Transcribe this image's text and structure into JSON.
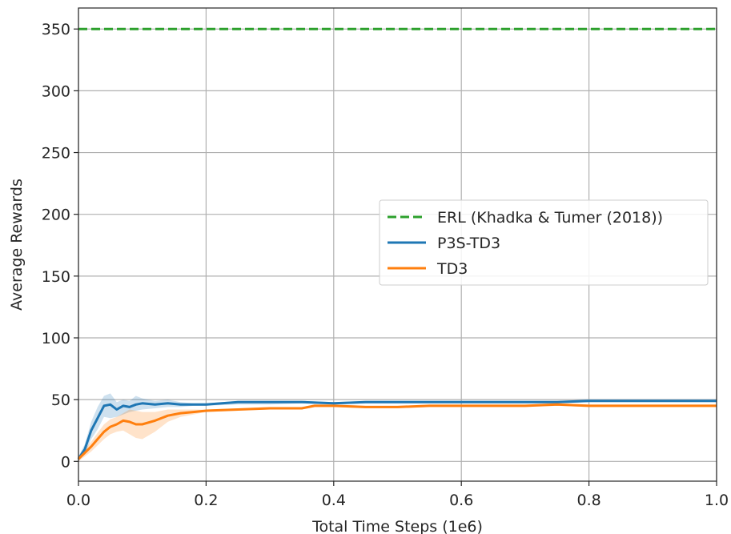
{
  "chart_data": {
    "type": "line",
    "title": "",
    "xlabel": "Total Time Steps (1e6)",
    "ylabel": "Average Rewards",
    "xlim": [
      0.0,
      1.0
    ],
    "ylim": [
      -16,
      367
    ],
    "xticks": [
      0.0,
      0.2,
      0.4,
      0.6,
      0.8,
      1.0
    ],
    "xtick_labels": [
      "0.0",
      "0.2",
      "0.4",
      "0.6",
      "0.8",
      "1.0"
    ],
    "yticks": [
      0,
      50,
      100,
      150,
      200,
      250,
      300,
      350
    ],
    "ytick_labels": [
      "0",
      "50",
      "100",
      "150",
      "200",
      "250",
      "300",
      "350"
    ],
    "grid": true,
    "legend_position": "center-right",
    "series": [
      {
        "name": "ERL (Khadka & Tumer (2018))",
        "color": "#2ca02c",
        "style": "dashed",
        "x": [
          0.0,
          1.0
        ],
        "y": [
          350,
          350
        ]
      },
      {
        "name": "P3S-TD3",
        "color": "#1f77b4",
        "style": "solid",
        "x": [
          0.0,
          0.01,
          0.02,
          0.03,
          0.04,
          0.05,
          0.06,
          0.07,
          0.08,
          0.09,
          0.1,
          0.12,
          0.14,
          0.16,
          0.18,
          0.2,
          0.25,
          0.3,
          0.35,
          0.4,
          0.45,
          0.5,
          0.55,
          0.6,
          0.65,
          0.7,
          0.75,
          0.8,
          0.85,
          0.9,
          0.95,
          1.0
        ],
        "y": [
          2,
          10,
          25,
          35,
          45,
          46,
          42,
          45,
          44,
          46,
          47,
          46,
          47,
          46,
          46,
          46,
          48,
          48,
          48,
          47,
          48,
          48,
          48,
          48,
          48,
          48,
          48,
          49,
          49,
          49,
          49,
          49
        ],
        "band_lower": [
          0,
          6,
          18,
          26,
          36,
          35,
          36,
          38,
          40,
          41,
          42,
          43,
          44,
          44,
          45,
          45,
          46,
          46,
          47,
          46,
          47,
          47,
          47,
          47,
          47,
          47,
          47,
          48,
          48,
          48,
          48,
          48
        ],
        "band_upper": [
          4,
          14,
          32,
          44,
          53,
          55,
          48,
          50,
          49,
          53,
          51,
          49,
          50,
          48,
          47,
          47,
          49,
          49,
          49,
          48,
          49,
          49,
          49,
          49,
          49,
          49,
          49,
          50,
          50,
          50,
          50,
          50
        ]
      },
      {
        "name": "TD3",
        "color": "#ff7f0e",
        "style": "solid",
        "x": [
          0.0,
          0.01,
          0.02,
          0.03,
          0.04,
          0.05,
          0.06,
          0.07,
          0.08,
          0.09,
          0.1,
          0.12,
          0.14,
          0.16,
          0.18,
          0.2,
          0.25,
          0.3,
          0.35,
          0.37,
          0.4,
          0.45,
          0.5,
          0.55,
          0.6,
          0.65,
          0.7,
          0.75,
          0.8,
          0.85,
          0.9,
          0.95,
          1.0
        ],
        "y": [
          2,
          7,
          12,
          18,
          24,
          28,
          30,
          33,
          32,
          30,
          30,
          33,
          37,
          39,
          40,
          41,
          42,
          43,
          43,
          45,
          45,
          44,
          44,
          45,
          45,
          45,
          45,
          46,
          45,
          45,
          45,
          45,
          45
        ],
        "band_lower": [
          0,
          4,
          8,
          13,
          18,
          22,
          24,
          25,
          22,
          19,
          18,
          24,
          32,
          36,
          38,
          40,
          41,
          42,
          42,
          44,
          44,
          43,
          43,
          44,
          44,
          44,
          44,
          45,
          44,
          44,
          44,
          44,
          44
        ],
        "band_upper": [
          4,
          10,
          16,
          23,
          30,
          34,
          36,
          39,
          42,
          41,
          40,
          40,
          42,
          42,
          42,
          42,
          43,
          44,
          44,
          46,
          46,
          45,
          45,
          46,
          46,
          46,
          46,
          47,
          46,
          46,
          46,
          46,
          46
        ]
      }
    ]
  }
}
